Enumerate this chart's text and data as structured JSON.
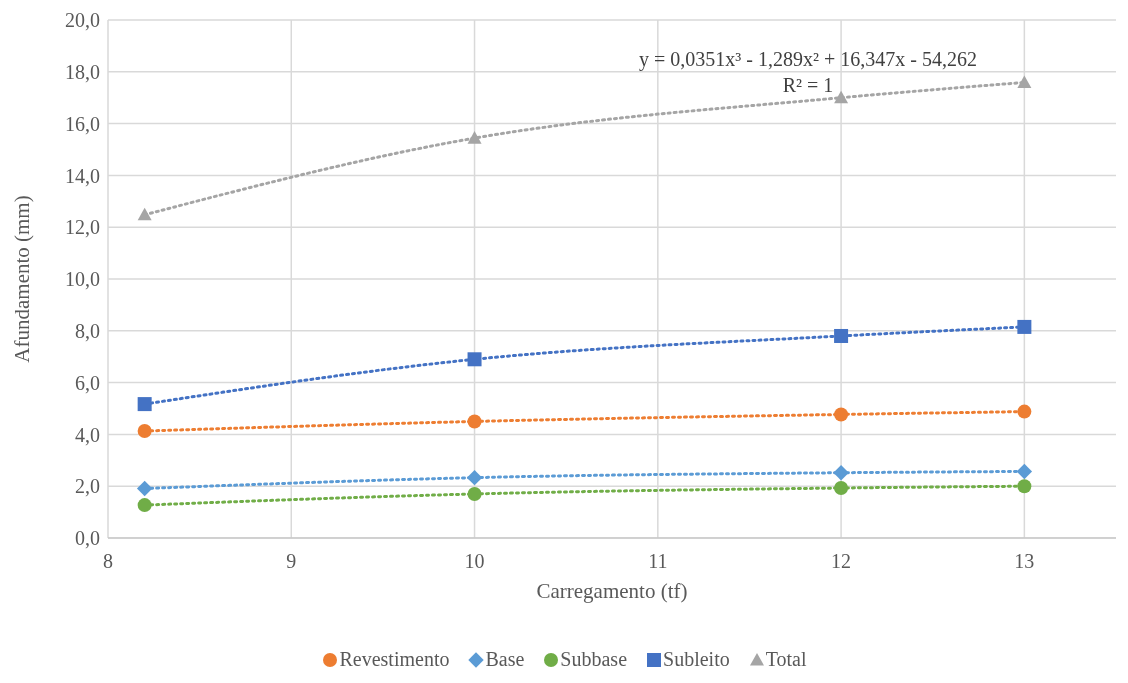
{
  "chart_data": {
    "type": "line",
    "xlabel": "Carregamento (tf)",
    "ylabel": "Afundamento (mm)",
    "x": [
      8.2,
      10,
      12,
      13
    ],
    "series": [
      {
        "name": "Revestimento",
        "color": "#ed7d31",
        "marker": "circle",
        "values": [
          4.13,
          4.5,
          4.77,
          4.88
        ]
      },
      {
        "name": "Base",
        "color": "#5b9bd5",
        "marker": "diamond",
        "values": [
          1.91,
          2.33,
          2.52,
          2.57
        ]
      },
      {
        "name": "Subbase",
        "color": "#70ad47",
        "marker": "circle",
        "values": [
          1.27,
          1.7,
          1.93,
          2.0
        ]
      },
      {
        "name": "Subleito",
        "color": "#4472c4",
        "marker": "square",
        "values": [
          5.17,
          6.9,
          7.8,
          8.15
        ]
      },
      {
        "name": "Total",
        "color": "#a5a5a5",
        "marker": "triangle",
        "values": [
          12.48,
          15.44,
          17.0,
          17.59
        ]
      }
    ],
    "xlim": [
      8,
      13.5
    ],
    "xticks": [
      8,
      9,
      10,
      11,
      12,
      13
    ],
    "ylim": [
      0,
      20
    ],
    "yticks": [
      {
        "value": 0,
        "label": "0,0"
      },
      {
        "value": 2,
        "label": "2,0"
      },
      {
        "value": 4,
        "label": "4,0"
      },
      {
        "value": 6,
        "label": "6,0"
      },
      {
        "value": 8,
        "label": "8,0"
      },
      {
        "value": 10,
        "label": "10,0"
      },
      {
        "value": 12,
        "label": "12,0"
      },
      {
        "value": 14,
        "label": "14,0"
      },
      {
        "value": 16,
        "label": "16,0"
      },
      {
        "value": 18,
        "label": "18,0"
      },
      {
        "value": 20,
        "label": "20,0"
      }
    ],
    "annotations": [
      "y = 0,0351x³ - 1,289x² + 16,347x - 54,262",
      "R² = 1"
    ],
    "grid": true,
    "legend": "bottom",
    "line_style": "dotted"
  }
}
